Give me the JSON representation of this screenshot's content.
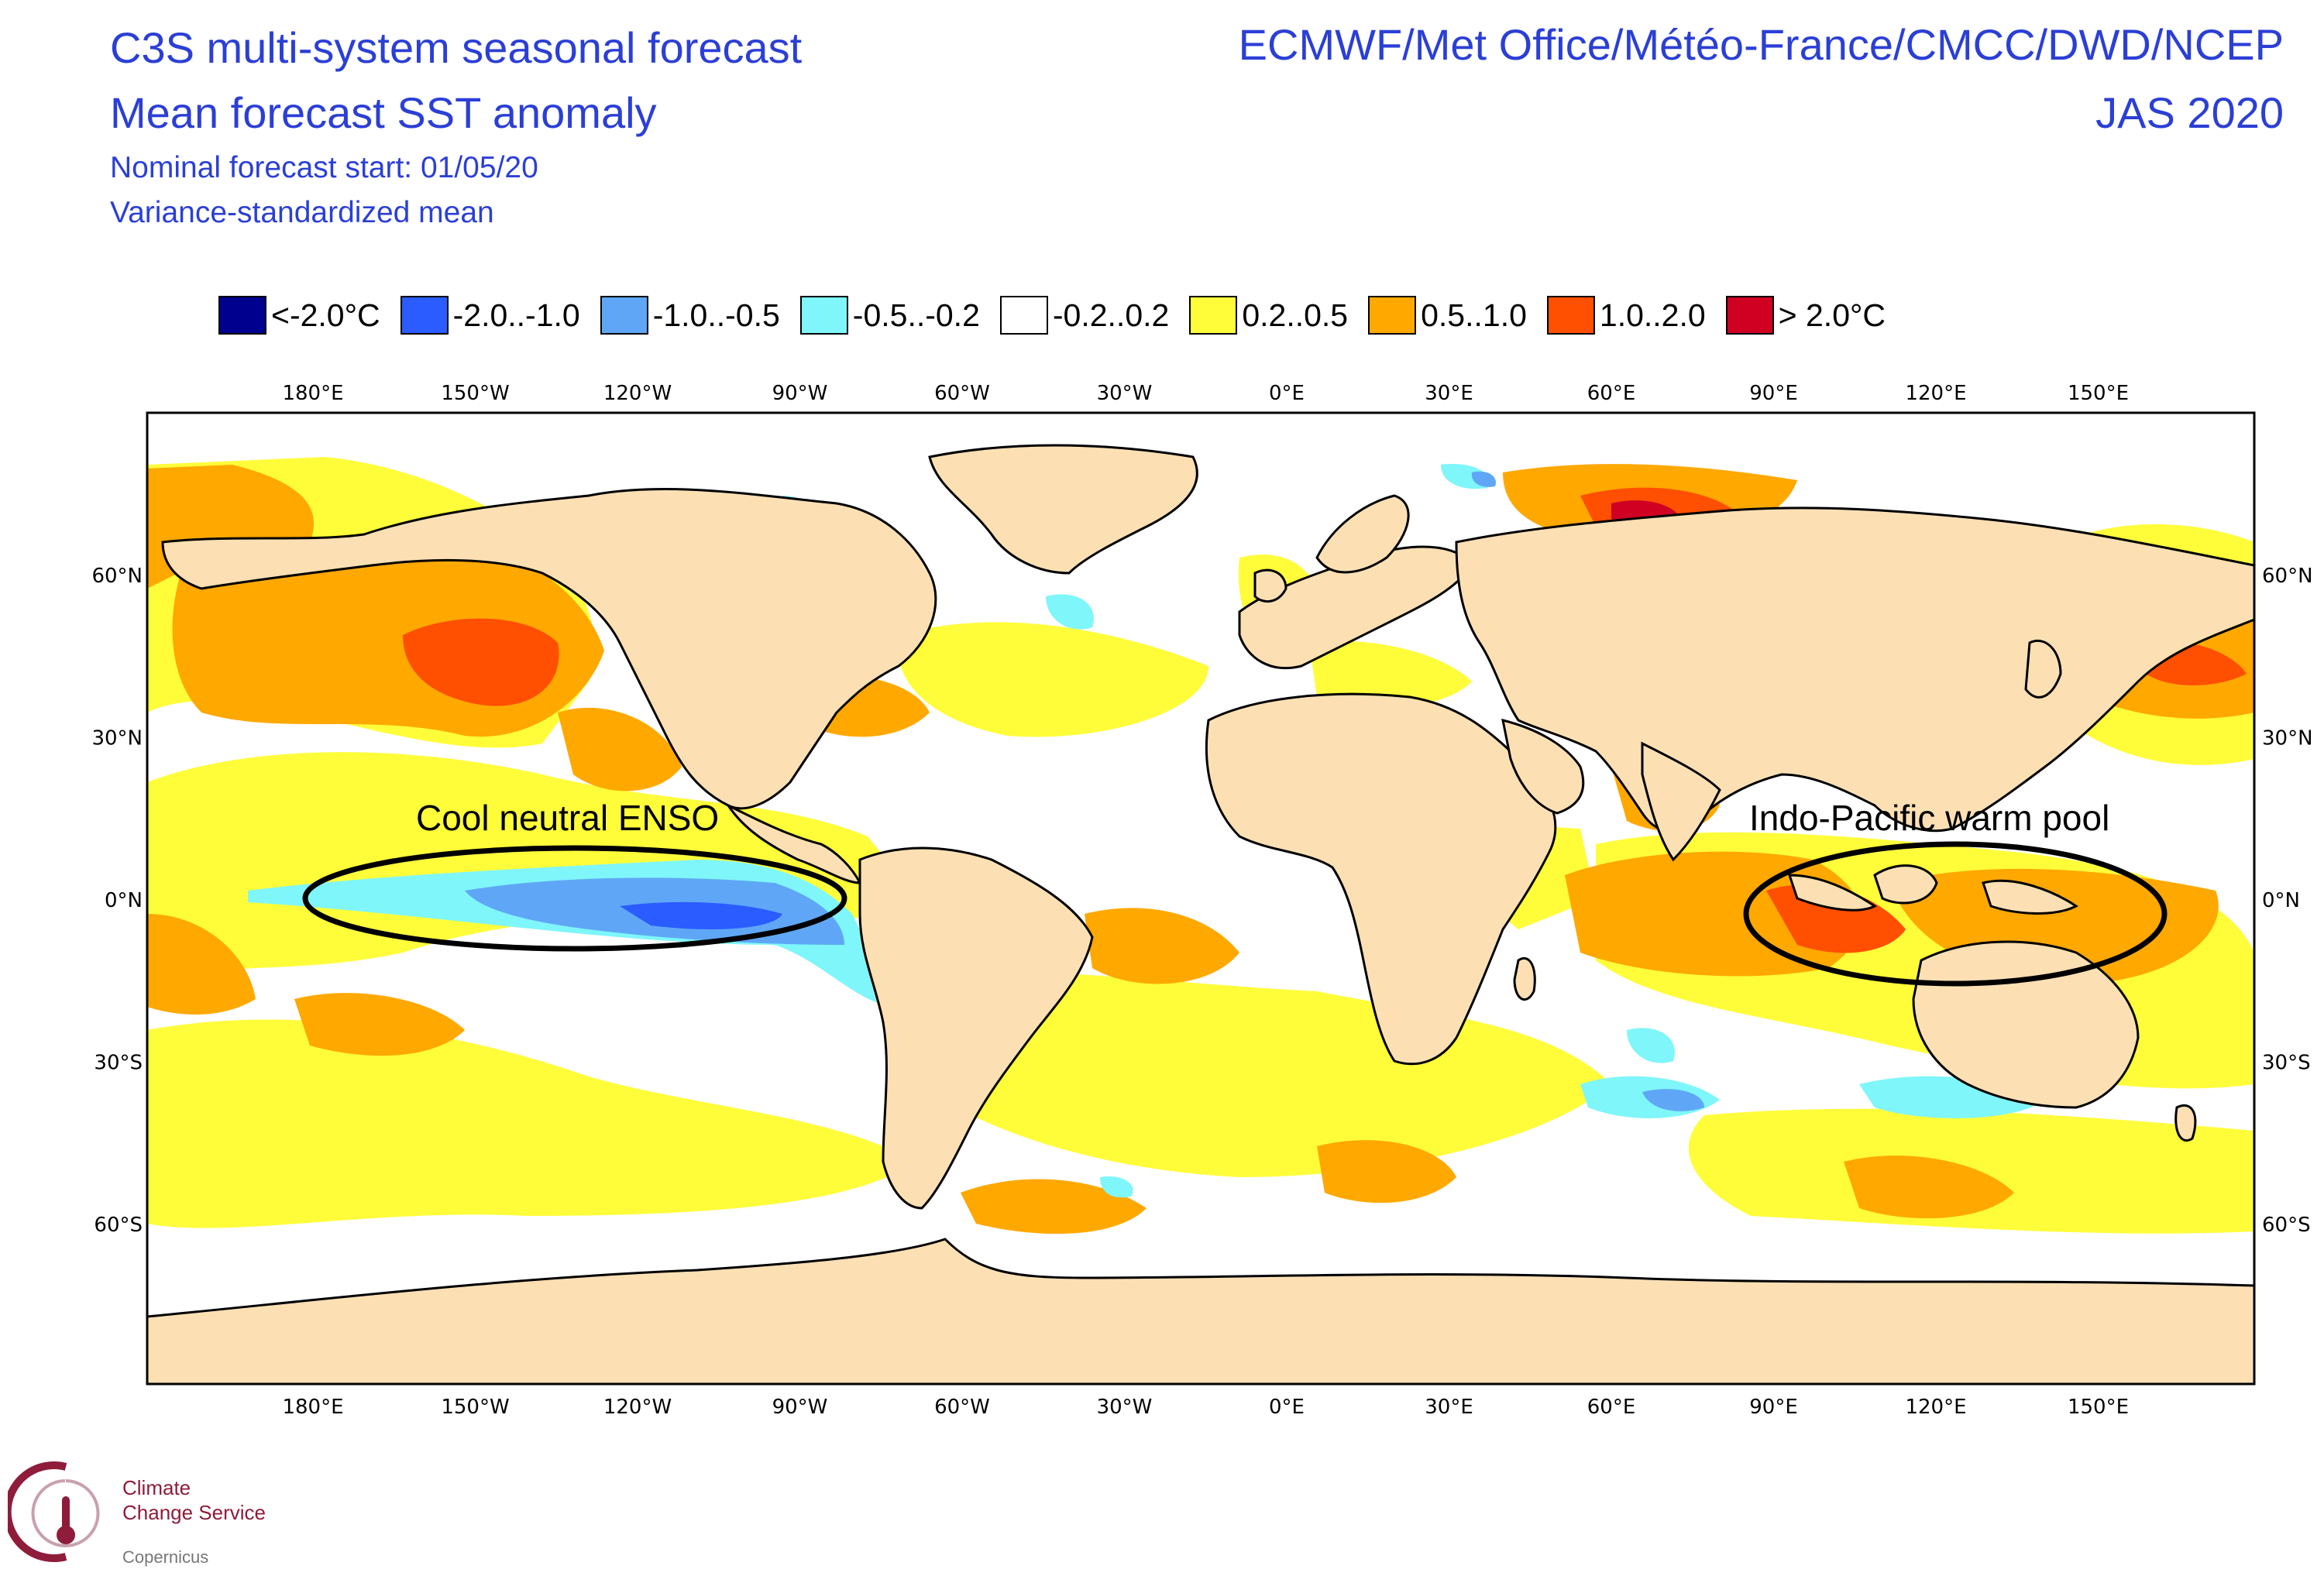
{
  "title": {
    "line1": "C3S multi-system seasonal forecast",
    "line2": "Mean forecast SST anomaly",
    "line3": "Nominal forecast start: 01/05/20",
    "line4": "Variance-standardized mean"
  },
  "right_title": {
    "centres": "ECMWF/Met Office/Météo-France/CMCC/DWD/NCEP",
    "period": "JAS 2020"
  },
  "legend": [
    {
      "label": "<-2.0°C",
      "color": "#00008f"
    },
    {
      "label": "-2.0..-1.0",
      "color": "#2a5cff"
    },
    {
      "label": "-1.0..-0.5",
      "color": "#5fa7f6"
    },
    {
      "label": "-0.5..-0.2",
      "color": "#7ff6fa"
    },
    {
      "label": "-0.2..0.2",
      "color": "#ffffff"
    },
    {
      "label": "0.2..0.5",
      "color": "#fffd3a"
    },
    {
      "label": "0.5..1.0",
      "color": "#ffa800"
    },
    {
      "label": "1.0..2.0",
      "color": "#ff4f00"
    },
    {
      "label": "> 2.0°C",
      "color": "#cf0022"
    }
  ],
  "axes": {
    "lon_labels": [
      "180°E",
      "150°W",
      "120°W",
      "90°W",
      "60°W",
      "30°W",
      "0°E",
      "30°E",
      "60°E",
      "90°E",
      "120°E",
      "150°E"
    ],
    "lat_labels_left": [
      "60°N",
      "30°N",
      "0°N",
      "30°S",
      "60°S"
    ],
    "lat_labels_right": [
      "60°N",
      "30°N",
      "0°N",
      "30°S",
      "60°S"
    ]
  },
  "annotations": {
    "enso": "Cool neutral ENSO",
    "warm_pool": "Indo-Pacific warm pool"
  },
  "logo": {
    "line1": "Climate",
    "line2": "Change Service",
    "line3": "Copernicus"
  },
  "colors": {
    "land": "#fce0b4",
    "title_blue": "#2b3fd6"
  }
}
